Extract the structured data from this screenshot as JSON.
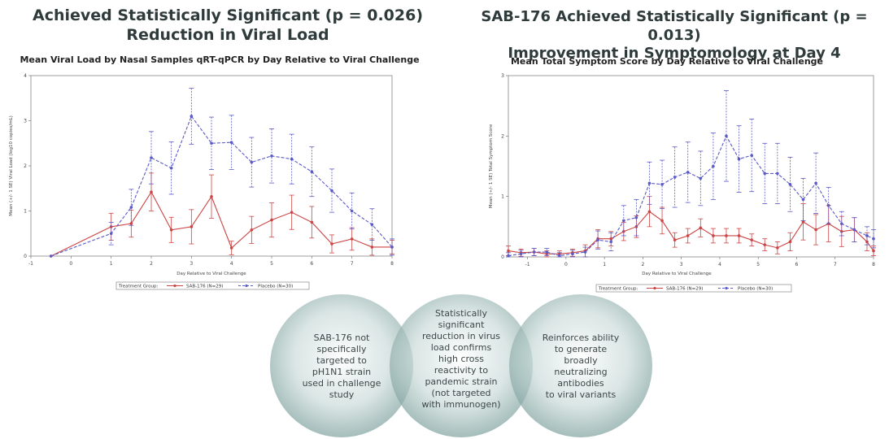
{
  "left_headline": [
    "Achieved Statistically Significant (p = 0.026)",
    "Reduction in Viral Load"
  ],
  "right_headline": [
    "SAB-176 Achieved Statistically Significant (p = 0.013)",
    "Improvement  in Symptomology at Day 4"
  ],
  "colors": {
    "sab": "#cc4444",
    "placebo": "#5a5ac8",
    "circle": "#7fa3a0"
  },
  "chart_data": [
    {
      "type": "line",
      "title": "Mean Viral Load by Nasal Samples qRT-qPCR by Day Relative to Viral Challenge",
      "xlabel": "Day Relative to Viral Challenge",
      "ylabel": "Mean (+/- 1 SE) Viral Load (log10 copies/mL)",
      "xlim": [
        -1,
        8
      ],
      "ylim": [
        0,
        4
      ],
      "xticks": [
        -1,
        0,
        1,
        2,
        3,
        4,
        5,
        6,
        7,
        8
      ],
      "yticks": [
        0,
        1,
        2,
        3,
        4
      ],
      "legend_title": "Treatment Group:",
      "grid": false,
      "series": [
        {
          "name": "SAB-176 (N=29)",
          "color": "#cc4444",
          "x": [
            -0.5,
            1,
            1.5,
            2,
            2.5,
            3,
            3.5,
            4,
            4.5,
            5,
            5.5,
            6,
            6.5,
            7,
            7.5,
            8
          ],
          "y": [
            0,
            0.65,
            0.72,
            1.42,
            0.58,
            0.65,
            1.32,
            0.18,
            0.58,
            0.8,
            0.97,
            0.75,
            0.27,
            0.38,
            0.2,
            0.2
          ],
          "se": [
            0,
            0.3,
            0.3,
            0.42,
            0.28,
            0.38,
            0.48,
            0.15,
            0.3,
            0.38,
            0.38,
            0.35,
            0.2,
            0.25,
            0.18,
            0.15
          ]
        },
        {
          "name": "Placebo (N=30)",
          "color": "#5a5ac8",
          "x": [
            -0.5,
            1,
            1.5,
            2,
            2.5,
            3,
            3.5,
            4,
            4.5,
            5,
            5.5,
            6,
            6.5,
            7,
            7.5,
            8
          ],
          "y": [
            0,
            0.5,
            1.08,
            2.18,
            1.95,
            3.1,
            2.5,
            2.52,
            2.08,
            2.22,
            2.15,
            1.87,
            1.45,
            1.0,
            0.7,
            0.2
          ],
          "se": [
            0,
            0.25,
            0.4,
            0.58,
            0.58,
            0.62,
            0.58,
            0.6,
            0.55,
            0.6,
            0.55,
            0.55,
            0.48,
            0.4,
            0.35,
            0.18
          ]
        }
      ]
    },
    {
      "type": "line",
      "title": "Mean Total Symptom Score by Day Relative to Viral Challenge",
      "xlabel": "Day Relative to Viral Challenge",
      "ylabel": "Mean (+/- 1 SE) Total Symptom Score",
      "xlim": [
        -1.5,
        8
      ],
      "ylim": [
        0,
        3
      ],
      "xticks": [
        -1,
        0,
        1,
        2,
        3,
        4,
        5,
        6,
        7,
        8
      ],
      "yticks": [
        0,
        1,
        2,
        3
      ],
      "legend_title": "Treatment Group:",
      "grid": false,
      "series": [
        {
          "name": "SAB-176 (N=29)",
          "color": "#cc4444",
          "x": [
            -1.5,
            -1.17,
            -0.83,
            -0.5,
            -0.17,
            0.17,
            0.5,
            0.83,
            1.17,
            1.5,
            1.83,
            2.17,
            2.5,
            2.83,
            3.17,
            3.5,
            3.83,
            4.17,
            4.5,
            4.83,
            5.17,
            5.5,
            5.83,
            6.17,
            6.5,
            6.83,
            7.17,
            7.5,
            7.83,
            8
          ],
          "y": [
            0.1,
            0.07,
            0.08,
            0.05,
            0.05,
            0.07,
            0.1,
            0.3,
            0.3,
            0.42,
            0.5,
            0.75,
            0.6,
            0.28,
            0.35,
            0.48,
            0.35,
            0.35,
            0.35,
            0.28,
            0.2,
            0.15,
            0.25,
            0.58,
            0.45,
            0.55,
            0.42,
            0.45,
            0.25,
            0.1
          ],
          "se": [
            0.08,
            0.06,
            0.06,
            0.05,
            0.05,
            0.06,
            0.1,
            0.15,
            0.12,
            0.15,
            0.18,
            0.25,
            0.22,
            0.12,
            0.12,
            0.15,
            0.12,
            0.12,
            0.12,
            0.1,
            0.1,
            0.1,
            0.15,
            0.3,
            0.25,
            0.3,
            0.25,
            0.2,
            0.15,
            0.08
          ]
        },
        {
          "name": "Placebo (N=30)",
          "color": "#5a5ac8",
          "x": [
            -1.5,
            -1.17,
            -0.83,
            -0.5,
            -0.17,
            0.17,
            0.5,
            0.83,
            1.17,
            1.5,
            1.83,
            2.17,
            2.5,
            2.83,
            3.17,
            3.5,
            3.83,
            4.17,
            4.5,
            4.83,
            5.17,
            5.5,
            5.83,
            6.17,
            6.5,
            6.83,
            7.17,
            7.5,
            7.83,
            8
          ],
          "y": [
            0.02,
            0.05,
            0.08,
            0.08,
            0.02,
            0.05,
            0.08,
            0.28,
            0.25,
            0.6,
            0.65,
            1.22,
            1.2,
            1.32,
            1.4,
            1.3,
            1.5,
            2.0,
            1.62,
            1.68,
            1.38,
            1.38,
            1.2,
            0.95,
            1.22,
            0.85,
            0.55,
            0.45,
            0.35,
            0.3
          ],
          "se": [
            0.05,
            0.06,
            0.06,
            0.06,
            0.05,
            0.06,
            0.08,
            0.15,
            0.15,
            0.25,
            0.3,
            0.35,
            0.4,
            0.5,
            0.5,
            0.45,
            0.55,
            0.75,
            0.55,
            0.6,
            0.5,
            0.5,
            0.45,
            0.35,
            0.5,
            0.3,
            0.2,
            0.2,
            0.15,
            0.15
          ]
        }
      ]
    }
  ],
  "circles": [
    [
      "SAB-176 not",
      "specifically",
      "targeted to",
      "pH1N1 strain",
      "used in challenge",
      "study"
    ],
    [
      "Statistically",
      "significant",
      "reduction in virus",
      "load confirms",
      "high cross",
      "reactivity to",
      "pandemic strain",
      "(not targeted",
      "with immunogen)"
    ],
    [
      "Reinforces ability",
      "to generate",
      "broadly",
      "neutralizing",
      "antibodies",
      "to viral variants"
    ]
  ]
}
